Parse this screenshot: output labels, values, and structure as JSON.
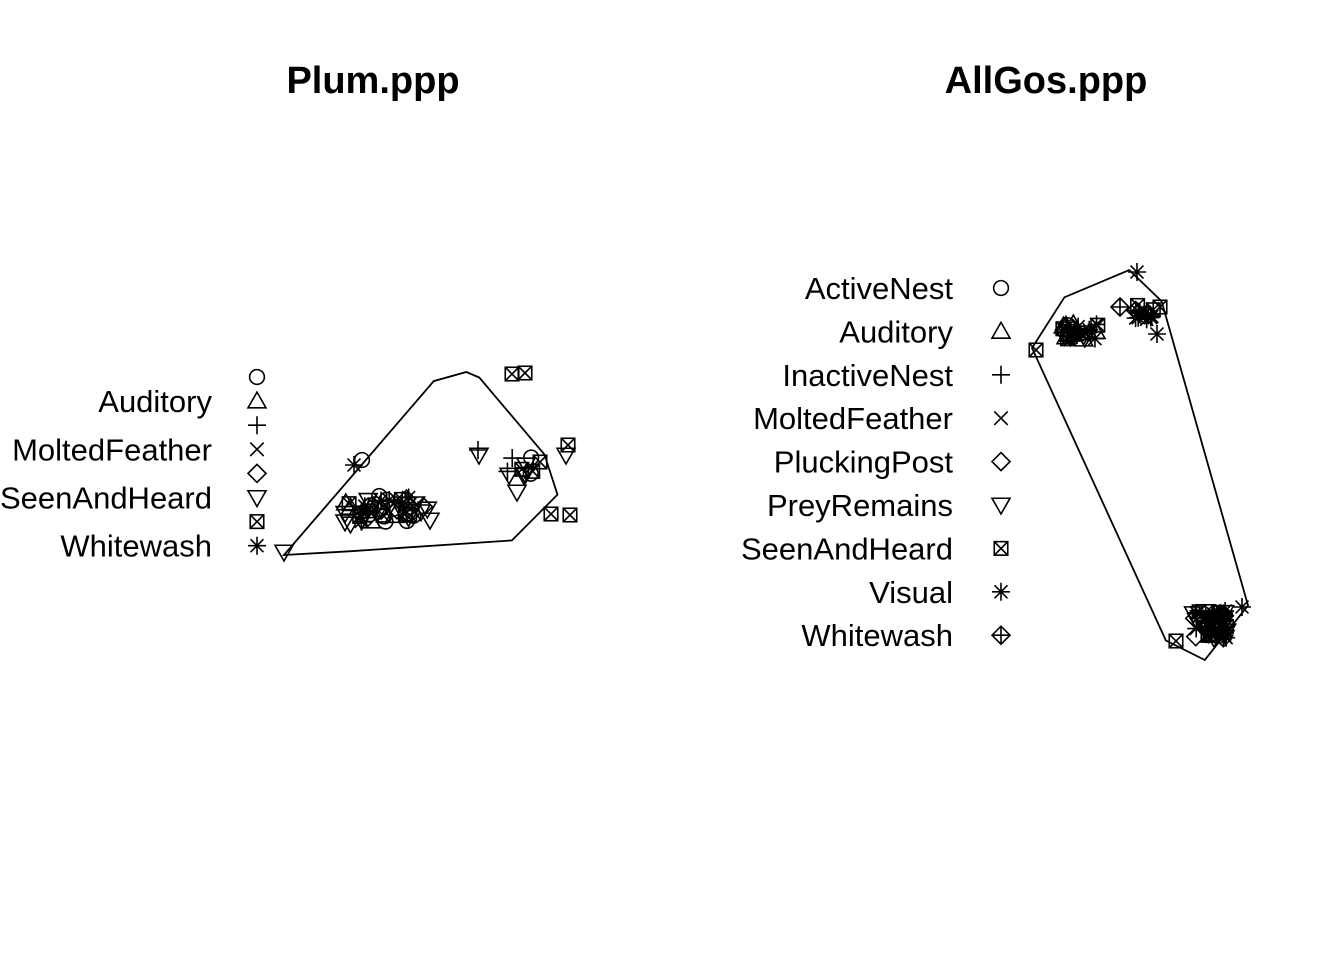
{
  "chart_data": [
    {
      "type": "scatter",
      "title": "Plum.ppp",
      "legend_placement": "left",
      "legend": [
        {
          "label": "",
          "symbol": "circle"
        },
        {
          "label": "Auditory",
          "symbol": "triangle"
        },
        {
          "label": "",
          "symbol": "plus"
        },
        {
          "label": "MoltedFeather",
          "symbol": "cross"
        },
        {
          "label": "",
          "symbol": "diamond"
        },
        {
          "label": "SeenAndHeard",
          "symbol": "triangle-down"
        },
        {
          "label": "",
          "symbol": "square-x"
        },
        {
          "label": "Whitewash",
          "symbol": "asterisk"
        }
      ],
      "window": [
        [
          0.0,
          0.0
        ],
        [
          0.23,
          0.95
        ],
        [
          0.28,
          1.0
        ],
        [
          0.3,
          0.97
        ],
        [
          0.4,
          0.55
        ],
        [
          0.42,
          0.33
        ],
        [
          0.35,
          0.08
        ],
        [
          0.1,
          0.02
        ]
      ],
      "xlim": [
        0,
        0.45
      ],
      "ylim": [
        0,
        1
      ]
    },
    {
      "type": "scatter",
      "title": "AllGos.ppp",
      "legend_placement": "left",
      "legend": [
        {
          "label": "ActiveNest",
          "symbol": "circle"
        },
        {
          "label": "Auditory",
          "symbol": "triangle"
        },
        {
          "label": "InactiveNest",
          "symbol": "plus"
        },
        {
          "label": "MoltedFeather",
          "symbol": "cross"
        },
        {
          "label": "PluckingPost",
          "symbol": "diamond"
        },
        {
          "label": "PreyRemains",
          "symbol": "triangle-down"
        },
        {
          "label": "SeenAndHeard",
          "symbol": "square-x"
        },
        {
          "label": "Visual",
          "symbol": "asterisk"
        },
        {
          "label": "Whitewash",
          "symbol": "plus-diamond"
        }
      ],
      "window": [
        [
          0.0,
          0.8
        ],
        [
          0.15,
          0.93
        ],
        [
          0.45,
          1.0
        ],
        [
          0.6,
          0.92
        ],
        [
          1.0,
          0.14
        ],
        [
          0.8,
          0.0
        ],
        [
          0.62,
          0.05
        ]
      ],
      "xlim": [
        0,
        1
      ],
      "ylim": [
        0,
        1
      ]
    }
  ]
}
